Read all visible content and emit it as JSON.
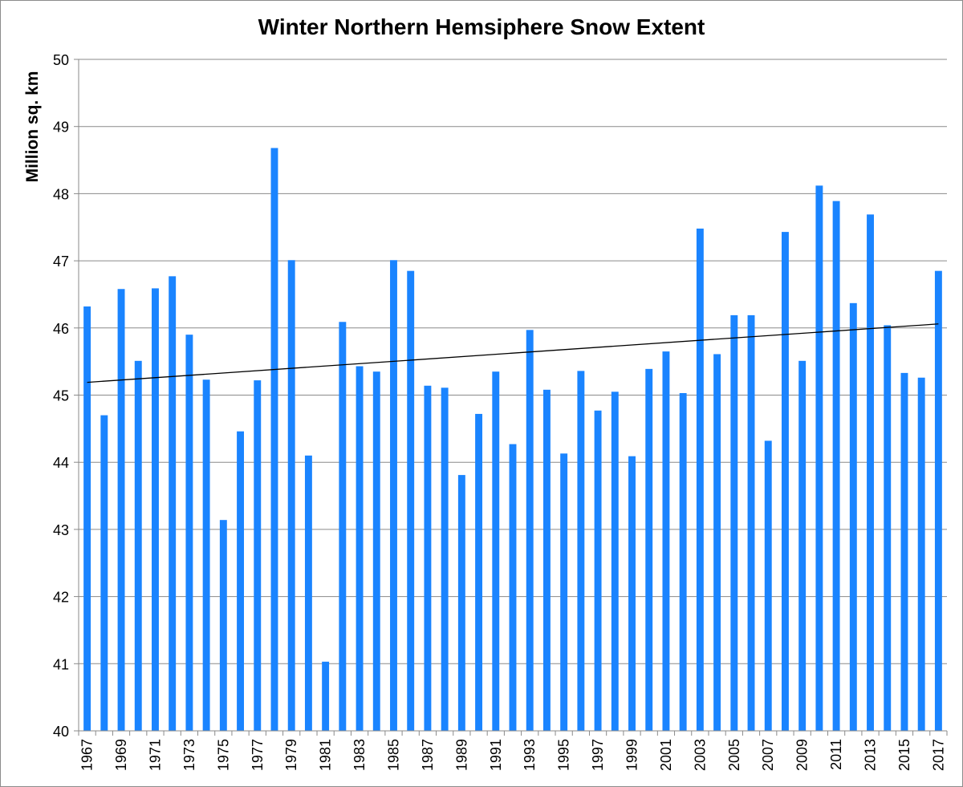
{
  "chart_data": {
    "type": "bar",
    "title": "Winter Northern Hemsiphere Snow Extent",
    "xlabel": "",
    "ylabel": "Million sq. km",
    "ylim": [
      40,
      50
    ],
    "yticks": [
      40,
      41,
      42,
      43,
      44,
      45,
      46,
      47,
      48,
      49,
      50
    ],
    "grid": true,
    "bar_color": "#1a84ff",
    "trendline": {
      "type": "linear",
      "color": "#000000",
      "start": {
        "x": 1967,
        "y": 45.19
      },
      "end": {
        "x": 2017,
        "y": 46.06
      }
    },
    "categories": [
      1967,
      1968,
      1969,
      1970,
      1971,
      1972,
      1973,
      1974,
      1975,
      1976,
      1977,
      1978,
      1979,
      1980,
      1981,
      1982,
      1983,
      1984,
      1985,
      1986,
      1987,
      1988,
      1989,
      1990,
      1991,
      1992,
      1993,
      1994,
      1995,
      1996,
      1997,
      1998,
      1999,
      2000,
      2001,
      2002,
      2003,
      2004,
      2005,
      2006,
      2007,
      2008,
      2009,
      2010,
      2011,
      2012,
      2013,
      2014,
      2015,
      2016,
      2017
    ],
    "xtick_labels": [
      "1967",
      "1969",
      "1971",
      "1973",
      "1975",
      "1977",
      "1979",
      "1981",
      "1983",
      "1985",
      "1987",
      "1989",
      "1991",
      "1993",
      "1995",
      "1997",
      "1999",
      "2001",
      "2003",
      "2005",
      "2007",
      "2009",
      "2011",
      "2013",
      "2015",
      "2017"
    ],
    "values": [
      46.32,
      44.7,
      46.58,
      45.51,
      46.59,
      46.77,
      45.9,
      45.23,
      43.14,
      44.46,
      45.22,
      48.68,
      47.01,
      44.1,
      41.03,
      46.09,
      45.43,
      45.35,
      47.01,
      46.85,
      45.14,
      45.11,
      43.81,
      44.72,
      45.35,
      44.27,
      45.97,
      45.08,
      44.13,
      45.36,
      44.77,
      45.05,
      44.09,
      45.39,
      45.65,
      45.03,
      47.48,
      45.61,
      46.19,
      46.19,
      44.32,
      47.43,
      45.51,
      48.12,
      47.89,
      46.37,
      47.69,
      46.04,
      45.33,
      45.26,
      46.85
    ]
  }
}
